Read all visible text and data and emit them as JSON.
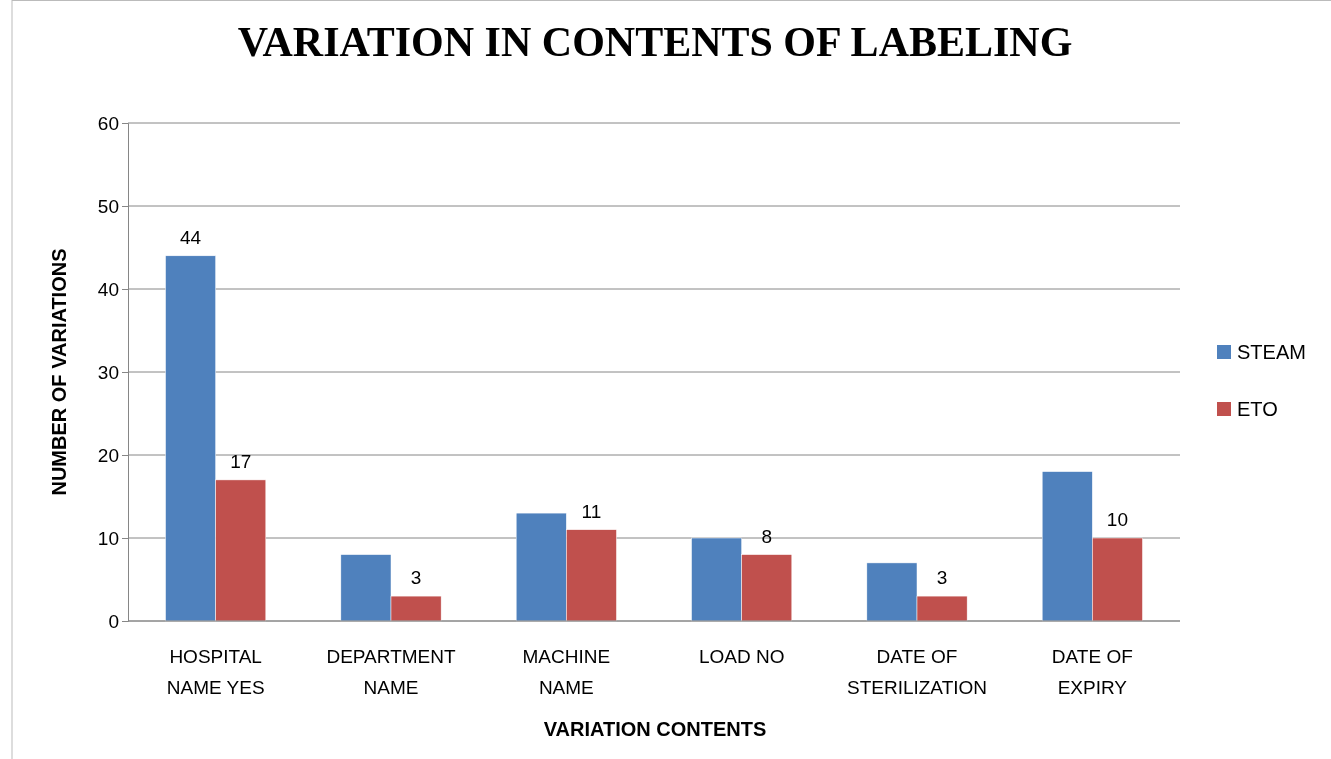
{
  "chart_data": {
    "type": "bar",
    "title": "VARIATION IN CONTENTS OF LABELING",
    "xlabel": "VARIATION CONTENTS",
    "ylabel": "NUMBER OF VARIATIONS",
    "categories": [
      "HOSPITAL NAME YES",
      "DEPARTMENT NAME",
      "MACHINE NAME",
      "LOAD NO",
      "DATE OF STERILIZATION",
      "DATE OF EXPIRY"
    ],
    "series": [
      {
        "name": "STEAM",
        "color": "#4f81bd",
        "values": [
          44,
          8,
          13,
          10,
          7,
          18
        ],
        "value_labels": [
          "44",
          null,
          null,
          null,
          null,
          null
        ]
      },
      {
        "name": "ETO",
        "color": "#c0504d",
        "values": [
          17,
          3,
          11,
          8,
          3,
          10
        ],
        "value_labels": [
          "17",
          "3",
          "11",
          "8",
          "3",
          "10"
        ]
      }
    ],
    "ylim": [
      0,
      60
    ],
    "yticks": [
      0,
      10,
      20,
      30,
      40,
      50,
      60
    ],
    "grid": "y",
    "legend": "right"
  }
}
